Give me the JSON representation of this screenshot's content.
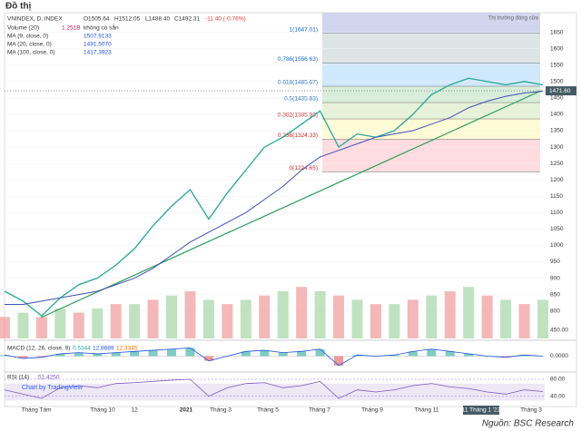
{
  "page_title": "Đồ thị",
  "source": "Nguồn: BSC Research",
  "watermark": "Chart by TradingView",
  "closed_note": "Thị trường đóng cửa",
  "header": {
    "symbol": "VNINDEX, D, INDEX",
    "open": "O1505.64",
    "high": "H1512.05",
    "low": "L1488.40",
    "close": "C1492.31",
    "change": "-11.40 (-0.76%)"
  },
  "indicators": [
    {
      "name": "Volume (20)",
      "value": "1.251B",
      "extra": "không có sẵn",
      "color": "#c2185b"
    },
    {
      "name": "MA (9, close, 0)",
      "value": "1507.9133",
      "color": "#1e53e5"
    },
    {
      "name": "MA (20, close, 0)",
      "value": "1491.5070",
      "color": "#1e53e5"
    },
    {
      "name": "MA (100, close, 0)",
      "value": "1417.3923",
      "color": "#1e53e5"
    }
  ],
  "chart_data": {
    "type": "candlestick-line",
    "ylim": [
      716,
      1710
    ],
    "yticks": [
      800,
      850,
      900,
      950,
      1000,
      1050,
      1100,
      1150,
      1200,
      1250,
      1300,
      1350,
      1400,
      1450,
      1500,
      1550,
      1600,
      1650
    ],
    "last_price": {
      "value": 1471.6,
      "label": "1471.60"
    },
    "series": [
      {
        "name": "VNINDEX",
        "color": "#26a69a",
        "values": [
          860,
          830,
          785,
          840,
          880,
          900,
          940,
          990,
          1060,
          1120,
          1170,
          1080,
          1160,
          1230,
          1300,
          1330,
          1370,
          1410,
          1300,
          1340,
          1330,
          1350,
          1400,
          1460,
          1490,
          1510,
          1500,
          1490,
          1500,
          1490
        ]
      },
      {
        "name": "MA (100, close, 0)",
        "color": "#3f51b5",
        "values": [
          820,
          820,
          830,
          840,
          850,
          860,
          880,
          900,
          930,
          970,
          1010,
          1040,
          1070,
          1100,
          1140,
          1180,
          1230,
          1270,
          1290,
          1310,
          1330,
          1340,
          1350,
          1370,
          1390,
          1420,
          1440,
          1455,
          1465,
          1470
        ]
      }
    ],
    "volume": {
      "color": "#ef9a9a",
      "ylim": [
        0,
        2.6
      ],
      "values": [
        0.5,
        0.6,
        0.5,
        0.7,
        0.6,
        0.7,
        0.8,
        0.8,
        0.9,
        1.0,
        1.1,
        0.9,
        0.8,
        0.9,
        1.0,
        1.1,
        1.2,
        1.1,
        1.0,
        0.9,
        0.8,
        0.8,
        0.9,
        1.0,
        1.1,
        1.2,
        1.0,
        0.9,
        0.8,
        0.9
      ]
    },
    "fib": [
      {
        "label": "1(1647.01)",
        "value": 1647.01,
        "color": "#cfd8dc"
      },
      {
        "label": "0.786(1556.63)",
        "value": 1556.63,
        "color": "#bbdefb"
      },
      {
        "label": "0.618(1485.67)",
        "value": 1485.67,
        "color": "#c8e6c9"
      },
      {
        "label": "0.5(1435.83)",
        "value": 1435.83,
        "color": "#dcedc8"
      },
      {
        "label": "0.382(1385.99)",
        "value": 1385.99,
        "color": "#fff9c4"
      },
      {
        "label": "0.236(1324.33)",
        "value": 1324.33,
        "color": "#ffcdd2"
      },
      {
        "label": "0(1224.65)",
        "value": 1224.65,
        "color": "#ffcdd2"
      }
    ],
    "x_labels": [
      "Tháng Tám",
      "Tháng 10",
      "12",
      "2021",
      "Tháng 3",
      "Tháng 5",
      "Tháng 7",
      "Tháng 9",
      "Tháng 11",
      "11 Tháng 1 '22",
      "Tháng 3"
    ],
    "macd": {
      "title": "MACD (12, 26, close, 9)",
      "v1": "0.5344",
      "v2": "12.8689",
      "v3": "12.3345",
      "ylim": [
        -60,
        60
      ],
      "yticks": [
        {
          "value": 0,
          "label": "0.0000"
        }
      ],
      "top_label": "450.00",
      "values": [
        5,
        -10,
        -5,
        10,
        15,
        10,
        15,
        20,
        25,
        30,
        35,
        -20,
        0,
        20,
        25,
        15,
        20,
        30,
        -40,
        5,
        0,
        5,
        20,
        30,
        20,
        10,
        0,
        -5,
        5,
        0
      ]
    },
    "rsi": {
      "title": "RSI (14)",
      "value": "51.4250",
      "ylim": [
        20,
        95
      ],
      "yticks": [
        {
          "value": 80,
          "label": "80.00"
        },
        {
          "value": 40,
          "label": "40.00"
        }
      ],
      "values": [
        55,
        45,
        35,
        60,
        65,
        60,
        70,
        72,
        75,
        78,
        80,
        40,
        60,
        70,
        72,
        60,
        65,
        75,
        35,
        55,
        50,
        55,
        65,
        70,
        62,
        58,
        50,
        45,
        55,
        51
      ]
    }
  }
}
